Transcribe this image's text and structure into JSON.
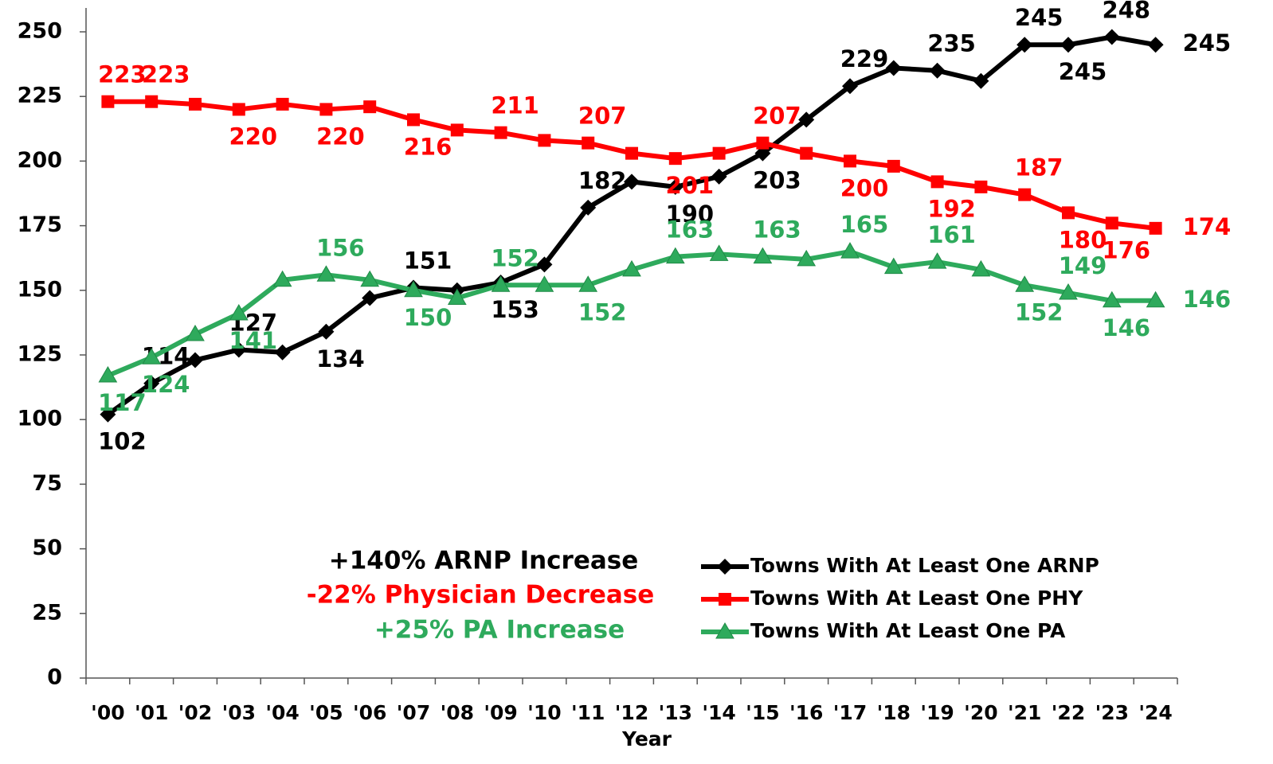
{
  "chart_data": {
    "type": "line",
    "x_label": "Year",
    "categories": [
      "'00",
      "'01",
      "'02",
      "'03",
      "'04",
      "'05",
      "'06",
      "'07",
      "'08",
      "'09",
      "'10",
      "'11",
      "'12",
      "'13",
      "'14",
      "'15",
      "'16",
      "'17",
      "'18",
      "'19",
      "'20",
      "'21",
      "'22",
      "'23",
      "'24"
    ],
    "ylim": [
      0,
      250
    ],
    "yticks": [
      0,
      25,
      50,
      75,
      100,
      125,
      150,
      175,
      200,
      225,
      250
    ],
    "grid": false,
    "legend": "lower right",
    "series": [
      {
        "name": "Towns With At Least One ARNP",
        "color": "#000000",
        "marker": "diamond",
        "values": [
          102,
          114,
          123,
          127,
          126,
          134,
          147,
          151,
          150,
          153,
          160,
          182,
          192,
          190,
          194,
          203,
          216,
          229,
          236,
          235,
          231,
          245,
          245,
          248,
          245
        ],
        "value_labels": [
          "102",
          "114",
          null,
          "127",
          null,
          "134",
          null,
          "151",
          null,
          "153",
          null,
          "182",
          null,
          "190",
          null,
          "203",
          null,
          "229",
          null,
          "235",
          null,
          "245",
          "245",
          "248",
          "245"
        ]
      },
      {
        "name": "Towns With At Least One PHY",
        "color": "#ff0000",
        "marker": "square",
        "values": [
          223,
          223,
          222,
          220,
          222,
          220,
          221,
          216,
          212,
          211,
          208,
          207,
          203,
          201,
          203,
          207,
          203,
          200,
          198,
          192,
          190,
          187,
          180,
          176,
          174
        ],
        "value_labels": [
          "223",
          "223",
          null,
          "220",
          null,
          "220",
          null,
          "216",
          null,
          "211",
          null,
          "207",
          null,
          "201",
          null,
          "207",
          null,
          "200",
          null,
          "192",
          null,
          "187",
          "180",
          "176",
          "174"
        ]
      },
      {
        "name": "Towns With At Least One PA",
        "color": "#2eaa5c",
        "marker": "triangle",
        "values": [
          117,
          124,
          133,
          141,
          154,
          156,
          154,
          150,
          147,
          152,
          152,
          152,
          158,
          163,
          164,
          163,
          162,
          165,
          159,
          161,
          158,
          152,
          149,
          146,
          146
        ],
        "value_labels": [
          "117",
          "124",
          null,
          "141",
          null,
          "156",
          null,
          "150",
          null,
          "152",
          null,
          "152",
          null,
          "163",
          null,
          "163",
          null,
          "165",
          null,
          "161",
          null,
          "152",
          "149",
          "146",
          "146"
        ]
      }
    ],
    "annotations": [
      {
        "text": "+140% ARNP Increase",
        "color": "#000000"
      },
      {
        "text": "-22% Physician Decrease",
        "color": "#ff0000"
      },
      {
        "text": "+25% PA Increase",
        "color": "#2eaa5c"
      }
    ]
  }
}
